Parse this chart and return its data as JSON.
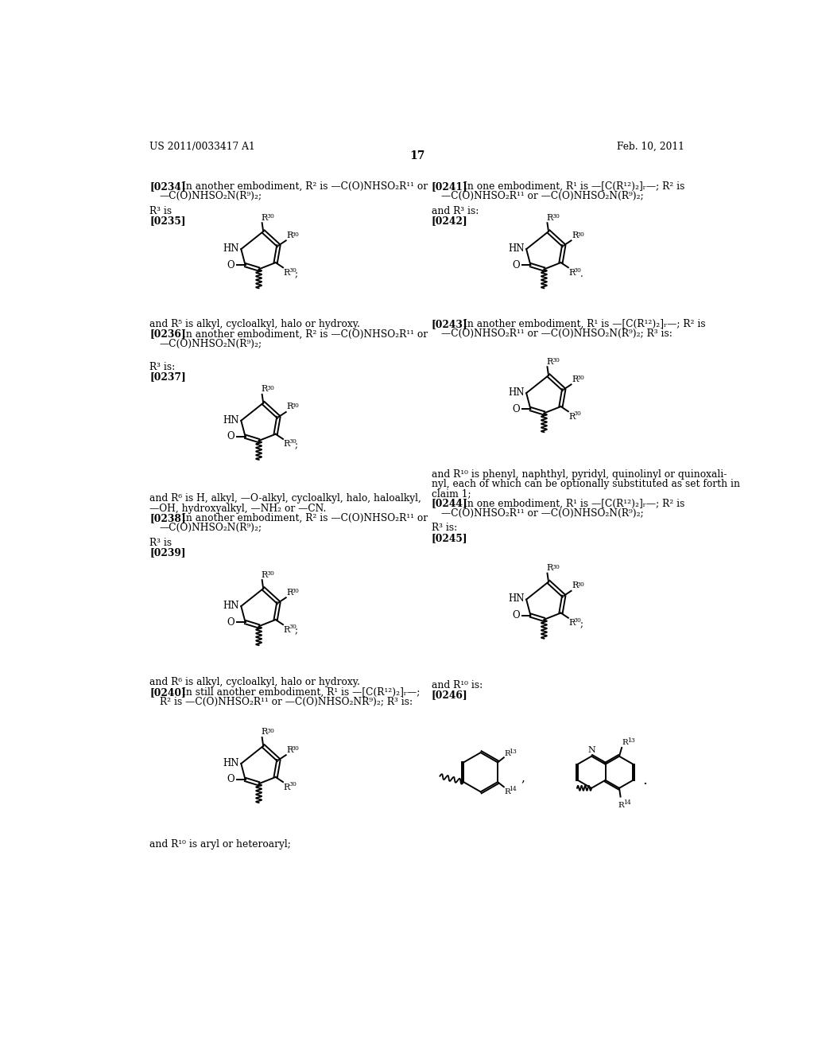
{
  "page_header_left": "US 2011/0033417 A1",
  "page_header_right": "Feb. 10, 2011",
  "page_number": "17",
  "bg": "#ffffff"
}
